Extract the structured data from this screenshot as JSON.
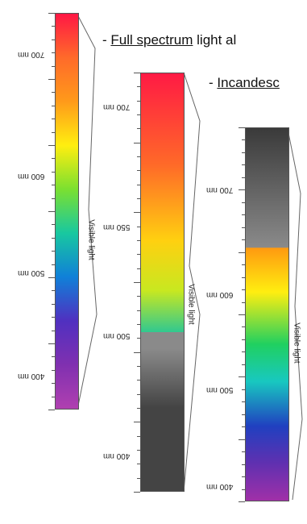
{
  "captions": {
    "full_spectrum": {
      "prefix": "- ",
      "underlined": "Full spectrum",
      "rest": " light al"
    },
    "incandescent": {
      "prefix": "- ",
      "underlined": "Incandesc",
      "rest": ""
    }
  },
  "strips": [
    {
      "id": "full-spectrum",
      "tick_labels": [
        "700 nm",
        "600 nm",
        "500 nm",
        "400 nm"
      ],
      "side_label": "Visible light",
      "colors": {
        "gradient": [
          "#ff1744",
          "#ff6a2a",
          "#ff9a1a",
          "#ffee10",
          "#7be030",
          "#18c8a0",
          "#1080d8",
          "#5030c0",
          "#8030b0",
          "#b040b0"
        ]
      }
    },
    {
      "id": "partial-spectrum",
      "tick_labels": [
        "700 nm",
        "550 nm",
        "500 nm",
        "400 nm"
      ],
      "side_label": "Visible light",
      "colors": {
        "gradient": [
          "#ff1a44",
          "#ff6a28",
          "#ffd010",
          "#c8e820",
          "#30c890",
          "#14a8b0",
          "#8a8a8a",
          "#444444"
        ]
      }
    },
    {
      "id": "incandescent",
      "tick_labels": [
        "700 nm",
        "600 nm",
        "500 nm",
        "400 nm"
      ],
      "side_label": "Visible light",
      "colors": {
        "gradient": [
          "#3a3a3a",
          "#8a8a8a",
          "#ff9a10",
          "#ffee10",
          "#20d060",
          "#18c8c0",
          "#2040c0",
          "#6030b0",
          "#a030a8"
        ]
      }
    }
  ]
}
